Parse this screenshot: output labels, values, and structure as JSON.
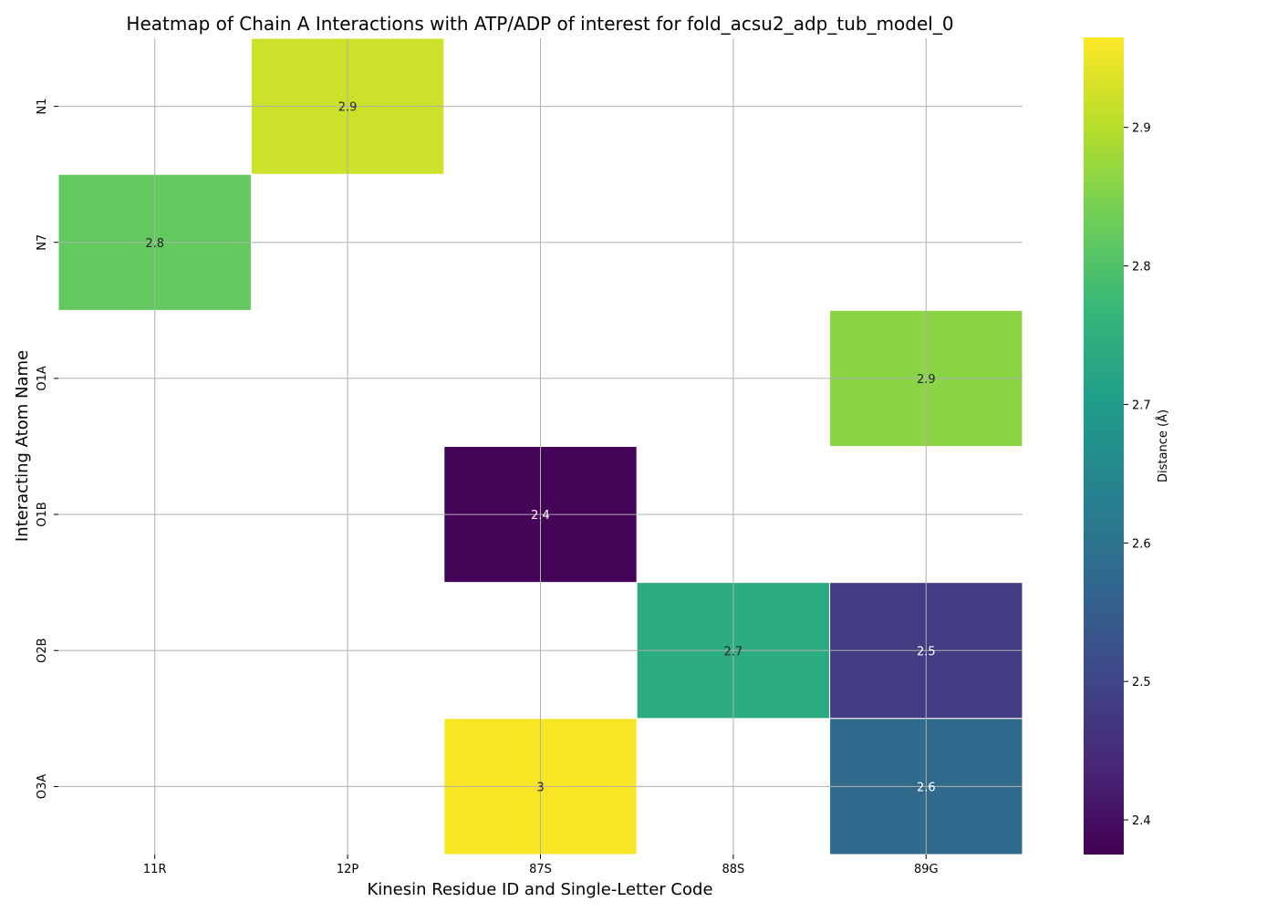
{
  "chart_data": {
    "type": "heatmap",
    "title": "Heatmap of Chain A Interactions with ATP/ADP of interest for fold_acsu2_adp_tub_model_0",
    "xlabel": "Kinesin Residue ID and Single-Letter Code",
    "ylabel": "Interacting Atom Name",
    "x_categories": [
      "11R",
      "12P",
      "87S",
      "88S",
      "89G"
    ],
    "y_categories": [
      "N1",
      "N7",
      "O1A",
      "O1B",
      "O2B",
      "O3A"
    ],
    "cells": [
      {
        "x": "12P",
        "y": "N1",
        "value": 2.92,
        "label": "2.9"
      },
      {
        "x": "11R",
        "y": "N7",
        "value": 2.82,
        "label": "2.8"
      },
      {
        "x": "89G",
        "y": "O1A",
        "value": 2.86,
        "label": "2.9"
      },
      {
        "x": "87S",
        "y": "O1B",
        "value": 2.38,
        "label": "2.4"
      },
      {
        "x": "88S",
        "y": "O2B",
        "value": 2.74,
        "label": "2.7"
      },
      {
        "x": "89G",
        "y": "O2B",
        "value": 2.48,
        "label": "2.5"
      },
      {
        "x": "87S",
        "y": "O3A",
        "value": 2.96,
        "label": "3"
      },
      {
        "x": "89G",
        "y": "O3A",
        "value": 2.58,
        "label": "2.6"
      }
    ],
    "colormap": "viridis",
    "colorbar": {
      "label": "Distance (Å)",
      "range": [
        2.375,
        2.965
      ],
      "ticks": [
        2.4,
        2.5,
        2.6,
        2.7,
        2.8,
        2.9
      ]
    },
    "grid": true
  }
}
